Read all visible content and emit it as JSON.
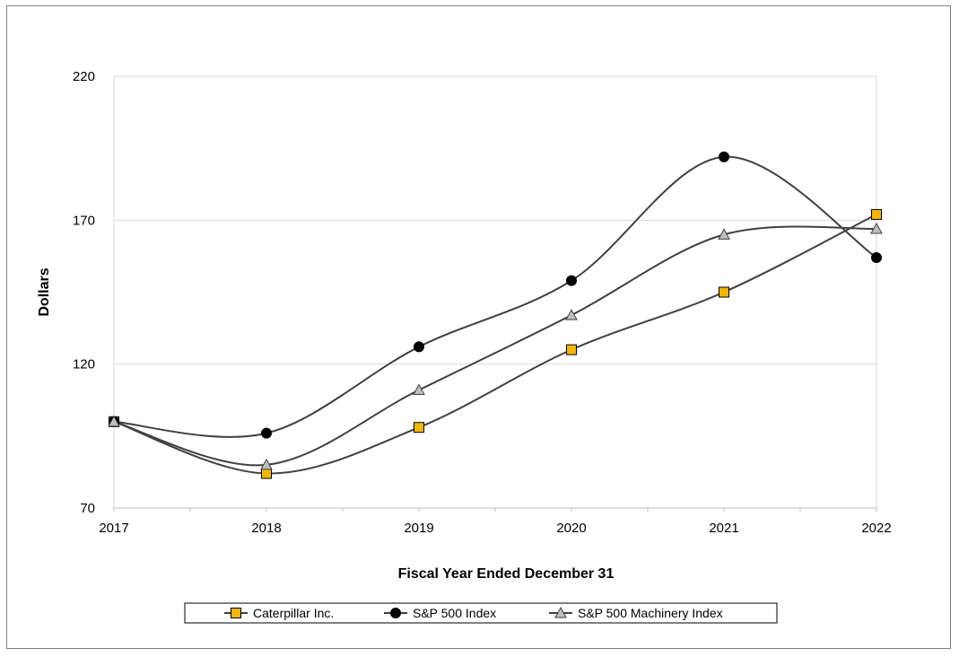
{
  "chart_data": {
    "type": "line",
    "title": "",
    "xlabel": "Fiscal Year Ended December 31",
    "ylabel": "Dollars",
    "categories": [
      "2017",
      "2018",
      "2019",
      "2020",
      "2021",
      "2022"
    ],
    "ylim": [
      70,
      220
    ],
    "yticks": [
      "70",
      "120",
      "170",
      "220"
    ],
    "grid": "horizontal",
    "legend_position": "bottom",
    "series": [
      {
        "name": "Caterpillar Inc.",
        "values": [
          100,
          82,
          98,
          125,
          145,
          172
        ],
        "color": "#f2b705",
        "marker": "square"
      },
      {
        "name": "S&P 500 Index",
        "values": [
          100,
          96,
          126,
          149,
          192,
          157
        ],
        "color": "#000000",
        "marker": "circle"
      },
      {
        "name": "S&P 500 Machinery Index",
        "values": [
          100,
          85,
          111,
          137,
          165,
          167
        ],
        "color": "#bfbfbf",
        "marker": "triangle"
      }
    ],
    "line_color": "#404040"
  }
}
